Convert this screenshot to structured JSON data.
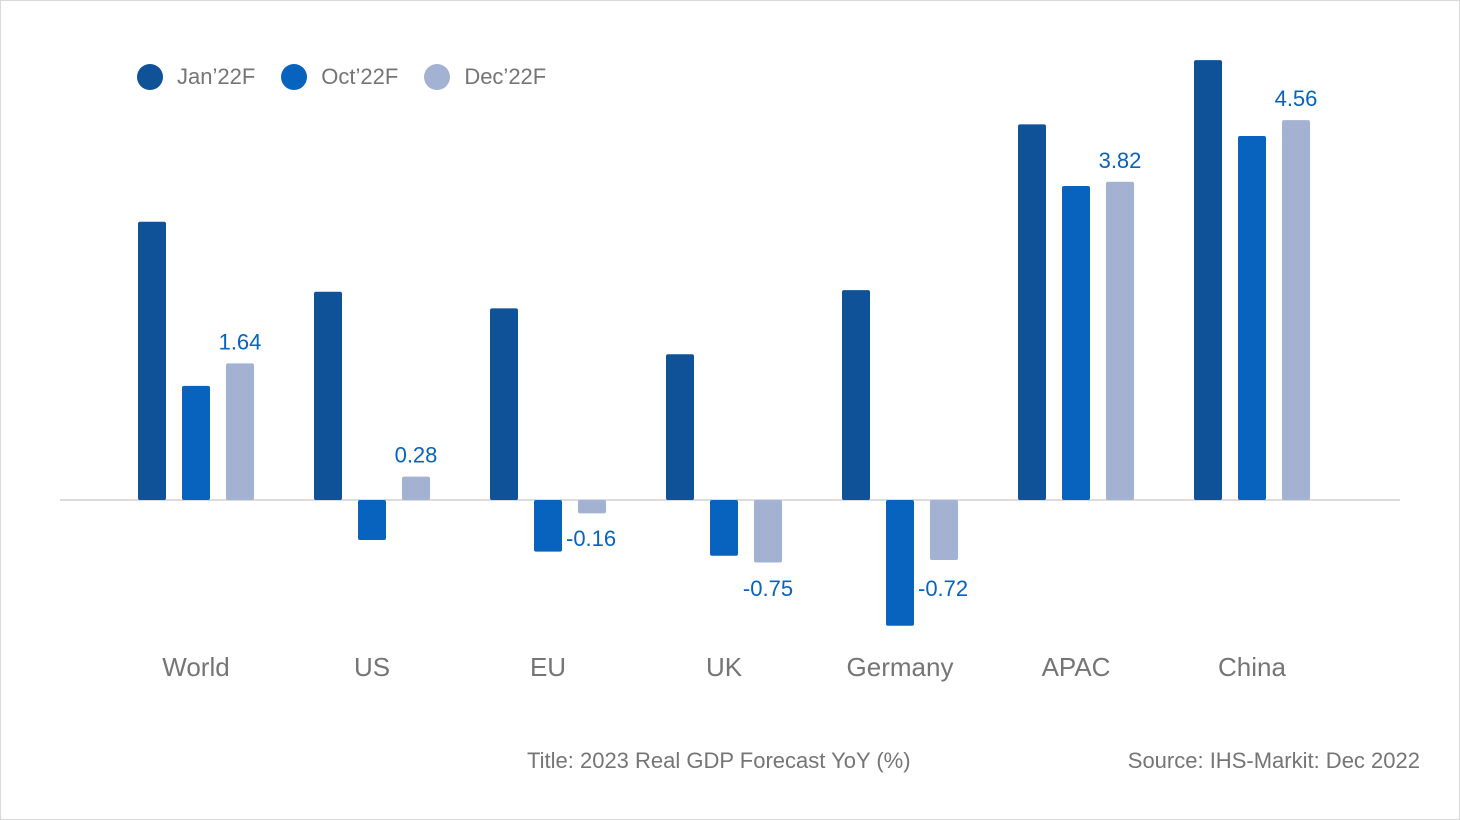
{
  "chart_data": {
    "type": "bar",
    "title": "Title: 2023 Real GDP Forecast YoY (%)",
    "source": "Source: IHS-Markit: Dec 2022",
    "xlabel": "",
    "ylabel": "",
    "categories": [
      "World",
      "US",
      "EU",
      "UK",
      "Germany",
      "APAC",
      "China"
    ],
    "series": [
      {
        "name": "Jan’22F",
        "color": "#0f5297",
        "values": [
          3.34,
          2.5,
          2.3,
          1.75,
          2.52,
          4.51,
          5.28
        ]
      },
      {
        "name": "Oct’22F",
        "color": "#0763be",
        "values": [
          1.37,
          -0.48,
          -0.62,
          -0.67,
          -1.51,
          3.77,
          4.37
        ]
      },
      {
        "name": "Dec’22F",
        "color": "#a3b2d2",
        "values": [
          1.64,
          0.28,
          -0.16,
          -0.75,
          -0.72,
          3.82,
          4.56
        ]
      }
    ],
    "data_labels": [
      "1.64",
      "0.28",
      "-0.16",
      "-0.75",
      "-0.72",
      "3.82",
      "4.56"
    ],
    "label_color": "#0763be",
    "legend_position": "top-left",
    "grid": false,
    "ylim": [
      -1.6,
      5.4
    ]
  }
}
